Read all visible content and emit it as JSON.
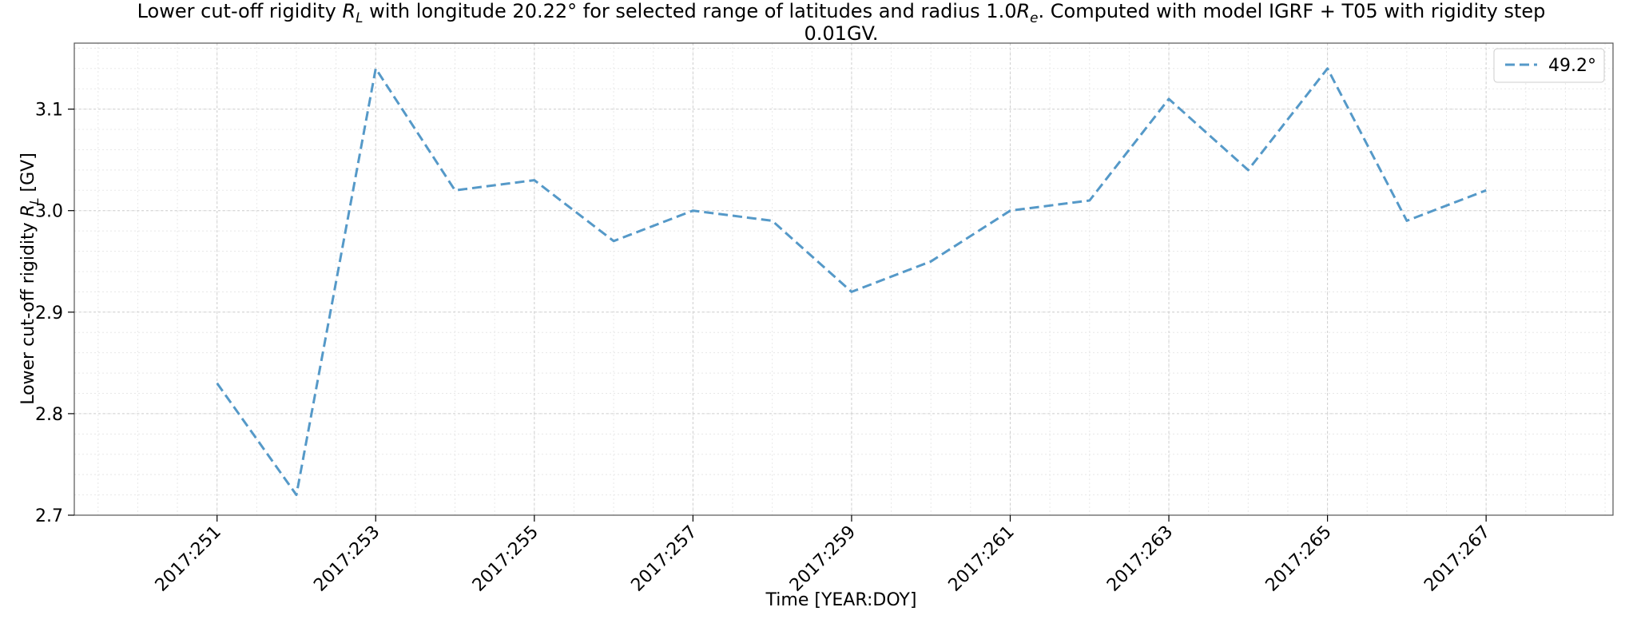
{
  "chart_data": {
    "type": "line",
    "title_line1": "Lower cut-off rigidity R_L with longitude 20.22° for selected range of latitudes and radius 1.0R_e. Computed with model IGRF + T05 with rigidity step",
    "title_line2": "0.01GV.",
    "xlabel": "Time [YEAR:DOY]",
    "ylabel": "Lower cut-off rigidity R_L [GV]",
    "ylim": [
      2.7,
      3.165
    ],
    "y_ticks": [
      "2.7",
      "2.8",
      "2.9",
      "3.0",
      "3.1"
    ],
    "y_tick_values": [
      2.7,
      2.8,
      2.9,
      3.0,
      3.1
    ],
    "x_tick_labels": [
      "2017:251",
      "2017:253",
      "2017:255",
      "2017:257",
      "2017:259",
      "2017:261",
      "2017:263",
      "2017:265",
      "2017:267"
    ],
    "x_tick_values": [
      251,
      253,
      255,
      257,
      259,
      261,
      263,
      265,
      267
    ],
    "xlim": [
      249.2,
      268.6
    ],
    "grid": true,
    "legend_position": "top-right",
    "series": [
      {
        "name": "49.2°",
        "color": "#5599c8",
        "x": [
          251,
          252,
          253,
          254,
          255,
          256,
          257,
          258,
          259,
          260,
          261,
          262,
          263,
          264,
          265,
          266,
          267
        ],
        "values": [
          2.83,
          2.72,
          3.14,
          3.02,
          3.03,
          2.97,
          3.0,
          2.99,
          2.92,
          2.95,
          3.0,
          3.01,
          3.11,
          3.04,
          3.14,
          2.99,
          3.02
        ]
      }
    ]
  }
}
